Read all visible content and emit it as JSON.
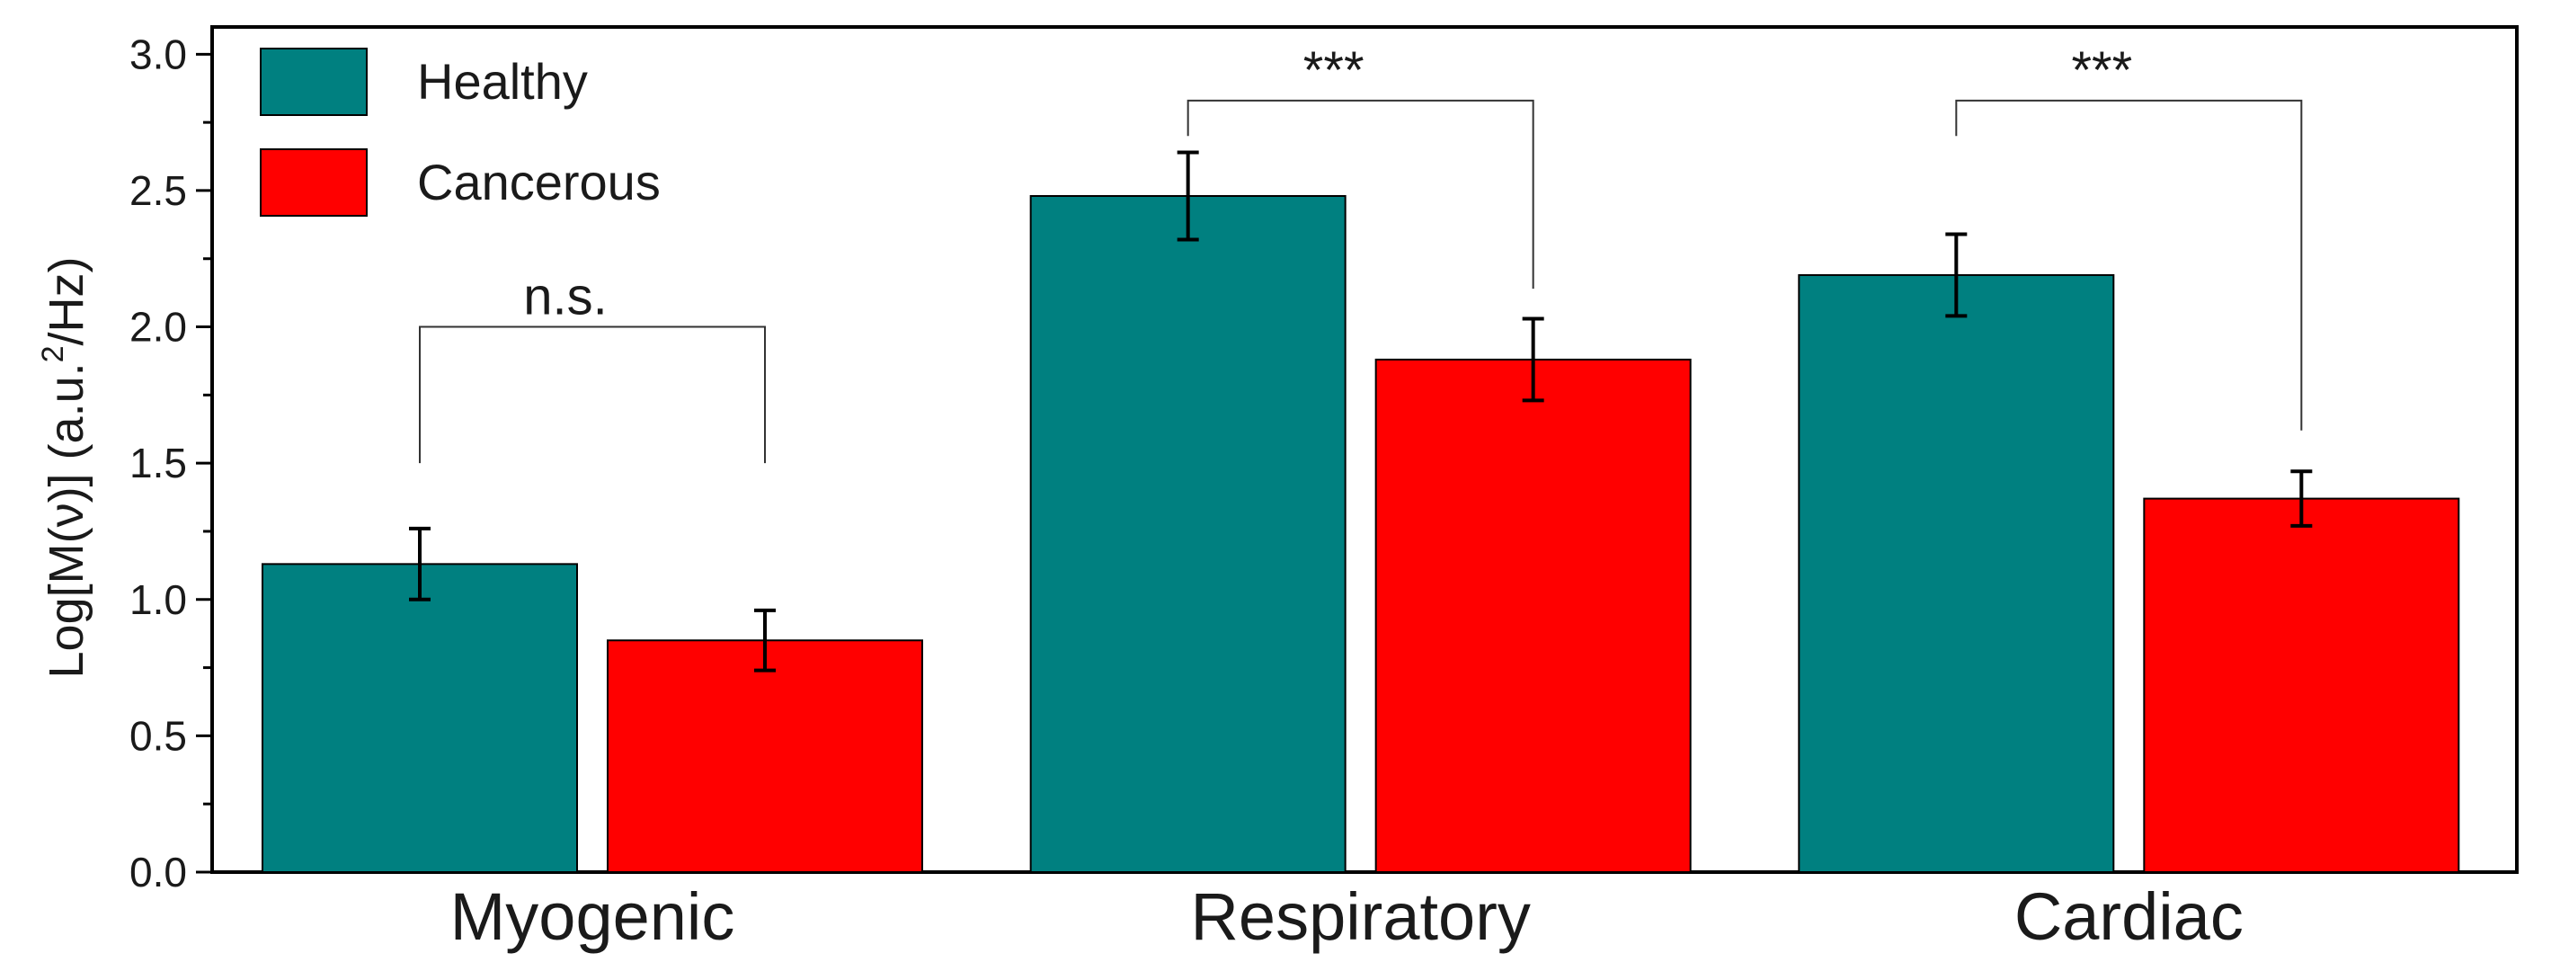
{
  "chart_data": {
    "type": "bar",
    "categories": [
      "Myogenic",
      "Respiratory",
      "Cardiac"
    ],
    "series": [
      {
        "name": "Healthy",
        "color": "#008080",
        "values": [
          1.13,
          2.48,
          2.19
        ],
        "errors": [
          0.13,
          0.16,
          0.15
        ]
      },
      {
        "name": "Cancerous",
        "color": "#ff0000",
        "values": [
          0.85,
          1.88,
          1.37
        ],
        "errors": [
          0.11,
          0.15,
          0.1
        ]
      }
    ],
    "ylabel_main": "Log[M(ν)] (a.u.",
    "ylabel_sup": "2",
    "ylabel_tail": "/Hz)",
    "ylim": [
      0,
      3.1
    ],
    "yticks": [
      "0.0",
      "0.5",
      "1.0",
      "1.5",
      "2.0",
      "2.5",
      "3.0"
    ],
    "legend_position": "top-left",
    "grid": false,
    "significance": [
      {
        "category": "Myogenic",
        "label": "n.s.",
        "bracket_top": 2.0,
        "left_end": 1.5,
        "right_end": 1.5
      },
      {
        "category": "Respiratory",
        "label": "***",
        "bracket_top": 2.83,
        "left_end": 2.7,
        "right_end": 2.14
      },
      {
        "category": "Cardiac",
        "label": "***",
        "bracket_top": 2.83,
        "left_end": 2.7,
        "right_end": 1.62
      }
    ]
  }
}
